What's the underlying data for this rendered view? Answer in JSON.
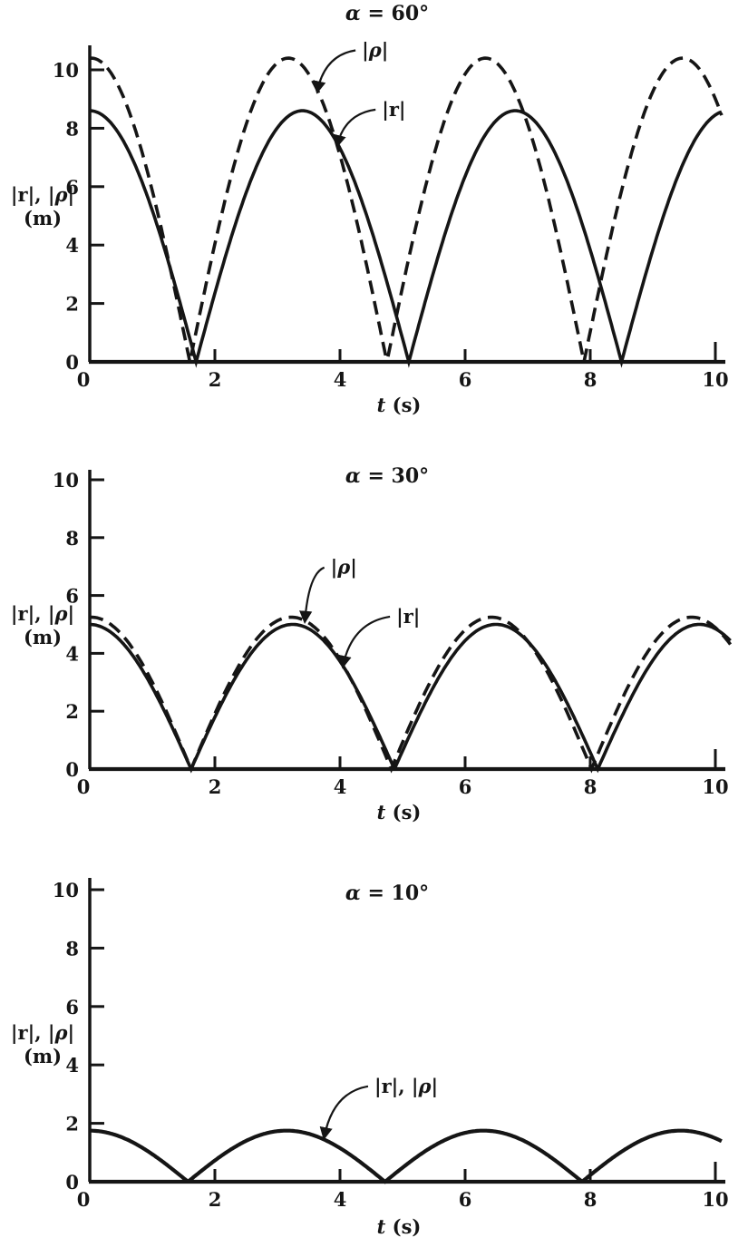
{
  "figure": {
    "background": "#ffffff",
    "ink_color": "#151515",
    "description": "Three stacked textbook-style plots of |r| and |rho| magnitude (m) versus time t (s) for launch angles alpha = 60, 30 and 10 degrees"
  },
  "chart_data": [
    {
      "type": "line",
      "title": "α = 60°",
      "xlabel": "t (s)",
      "ylabel_line1": "|r|, |ρ|",
      "ylabel_line2": "(m)",
      "xlim": [
        0,
        10
      ],
      "ylim": [
        0,
        10
      ],
      "xticks": [
        0,
        2,
        4,
        6,
        8,
        10
      ],
      "yticks": [
        0,
        2,
        4,
        6,
        8,
        10
      ],
      "grid": false,
      "legend_position": "inline curve labels with arrows",
      "t_samples": [
        0,
        0.5,
        1,
        1.5,
        2,
        2.5,
        3,
        3.5,
        4,
        4.5,
        5,
        5.5,
        6,
        6.5,
        7,
        7.5,
        8,
        8.5,
        9,
        9.5,
        10
      ],
      "series": [
        {
          "name": "|ρ|",
          "style": "dashed",
          "peak": 10.4,
          "zeros": [
            1.6,
            4.75,
            7.9
          ],
          "model": {
            "amplitude": 10.4,
            "first_zero": 1.6,
            "half_period": 3.15
          },
          "values": [
            10.4,
            9.26,
            5.86,
            1.04,
            4.04,
            8.13,
            10.24,
            9.86,
            7.07,
            2.56,
            2.56,
            7.07,
            9.86,
            10.24,
            8.13,
            4.04,
            1.04,
            5.86,
            9.26,
            10.4,
            9.0
          ]
        },
        {
          "name": "|r|",
          "style": "solid",
          "peak": 8.6,
          "zeros": [
            1.7,
            5.1,
            8.5
          ],
          "model": {
            "amplitude": 8.6,
            "first_zero": 1.7,
            "half_period": 3.4
          },
          "values": [
            8.6,
            7.7,
            5.18,
            1.58,
            2.35,
            5.79,
            8.02,
            8.56,
            7.31,
            4.52,
            0.8,
            3.13,
            6.34,
            8.27,
            8.45,
            6.84,
            3.78,
            0.0,
            3.83,
            6.86,
            8.45
          ]
        }
      ],
      "annotations": [
        {
          "label": "|ρ|",
          "text_at": {
            "t": 4.35,
            "value": 10.45
          },
          "arrow_tip": {
            "t": 3.64,
            "value": 9.3
          }
        },
        {
          "label": "|r|",
          "text_at": {
            "t": 4.67,
            "value": 8.42
          },
          "arrow_tip": {
            "t": 3.96,
            "value": 7.45
          }
        }
      ]
    },
    {
      "type": "line",
      "title": "α = 30°",
      "xlabel": "t (s)",
      "ylabel_line1": "|r|, |ρ|",
      "ylabel_line2": "(m)",
      "xlim": [
        0,
        10
      ],
      "ylim": [
        0,
        10
      ],
      "xticks": [
        0,
        2,
        4,
        6,
        8,
        10
      ],
      "yticks": [
        0,
        2,
        4,
        6,
        8,
        10
      ],
      "grid": false,
      "legend_position": "inline curve labels with arrows",
      "t_samples": [
        0,
        0.5,
        1,
        1.5,
        2,
        2.5,
        3,
        3.5,
        4,
        4.5,
        5,
        5.5,
        6,
        6.5,
        7,
        7.5,
        8,
        8.5,
        9,
        9.5,
        10
      ],
      "series": [
        {
          "name": "|ρ|",
          "style": "dashed",
          "peak": 5.25,
          "zeros": [
            1.62,
            4.82,
            8.02
          ],
          "model": {
            "amplitude": 5.25,
            "first_zero": 1.62,
            "half_period": 3.2
          },
          "values": [
            5.25,
            4.68,
            3.0,
            0.62,
            1.91,
            3.99,
            5.13,
            5.05,
            3.78,
            1.62,
            0.92,
            3.26,
            4.8,
            5.24,
            4.51,
            2.57,
            0.1,
            2.38,
            4.31,
            5.21,
            4.89
          ]
        },
        {
          "name": "|r|",
          "style": "solid",
          "peak": 5.0,
          "zeros": [
            1.62,
            4.87,
            8.12
          ],
          "model": {
            "amplitude": 5.0,
            "first_zero": 1.62,
            "half_period": 3.25
          },
          "values": [
            5.0,
            4.42,
            2.82,
            0.58,
            1.8,
            3.76,
            4.86,
            4.85,
            3.73,
            1.75,
            0.63,
            2.86,
            4.44,
            5.0,
            4.42,
            2.82,
            0.58,
            1.79,
            3.76,
            4.86,
            4.85
          ]
        }
      ],
      "annotations": [
        {
          "label": "|ρ|",
          "text_at": {
            "t": 3.85,
            "value": 6.75
          },
          "arrow_tip": {
            "t": 3.44,
            "value": 5.15
          }
        },
        {
          "label": "|r|",
          "text_at": {
            "t": 4.9,
            "value": 5.05
          },
          "arrow_tip": {
            "t": 4.05,
            "value": 3.6
          }
        }
      ]
    },
    {
      "type": "line",
      "title": "α = 10°",
      "xlabel": "t (s)",
      "ylabel_line1": "|r|, |ρ|",
      "ylabel_line2": "(m)",
      "xlim": [
        0,
        10
      ],
      "ylim": [
        0,
        10
      ],
      "xticks": [
        0,
        2,
        4,
        6,
        8,
        10
      ],
      "yticks": [
        0,
        2,
        4,
        6,
        8,
        10
      ],
      "grid": false,
      "legend_position": "inline curve label with arrow",
      "t_samples": [
        0,
        0.5,
        1,
        1.5,
        2,
        2.5,
        3,
        3.5,
        4,
        4.5,
        5,
        5.5,
        6,
        6.5,
        7,
        7.5,
        8,
        8.5,
        9,
        9.5,
        10
      ],
      "series": [
        {
          "name": "|r|, |ρ|",
          "style": "solid",
          "peak": 1.75,
          "zeros": [
            1.57,
            4.72,
            7.87
          ],
          "model": {
            "amplitude": 1.75,
            "first_zero": 1.57,
            "half_period": 3.15
          },
          "values": [
            1.75,
            1.53,
            0.94,
            0.12,
            0.73,
            1.4,
            1.73,
            1.64,
            1.16,
            0.38,
            0.48,
            1.23,
            1.68,
            1.71,
            1.33,
            0.62,
            0.22,
            1.03,
            1.58,
            1.75,
            1.49
          ]
        }
      ],
      "annotations": [
        {
          "label": "|r|, |ρ|",
          "text_at": {
            "t": 4.55,
            "value": 3.05
          },
          "arrow_tip": {
            "t": 3.75,
            "value": 1.55
          }
        }
      ]
    }
  ]
}
